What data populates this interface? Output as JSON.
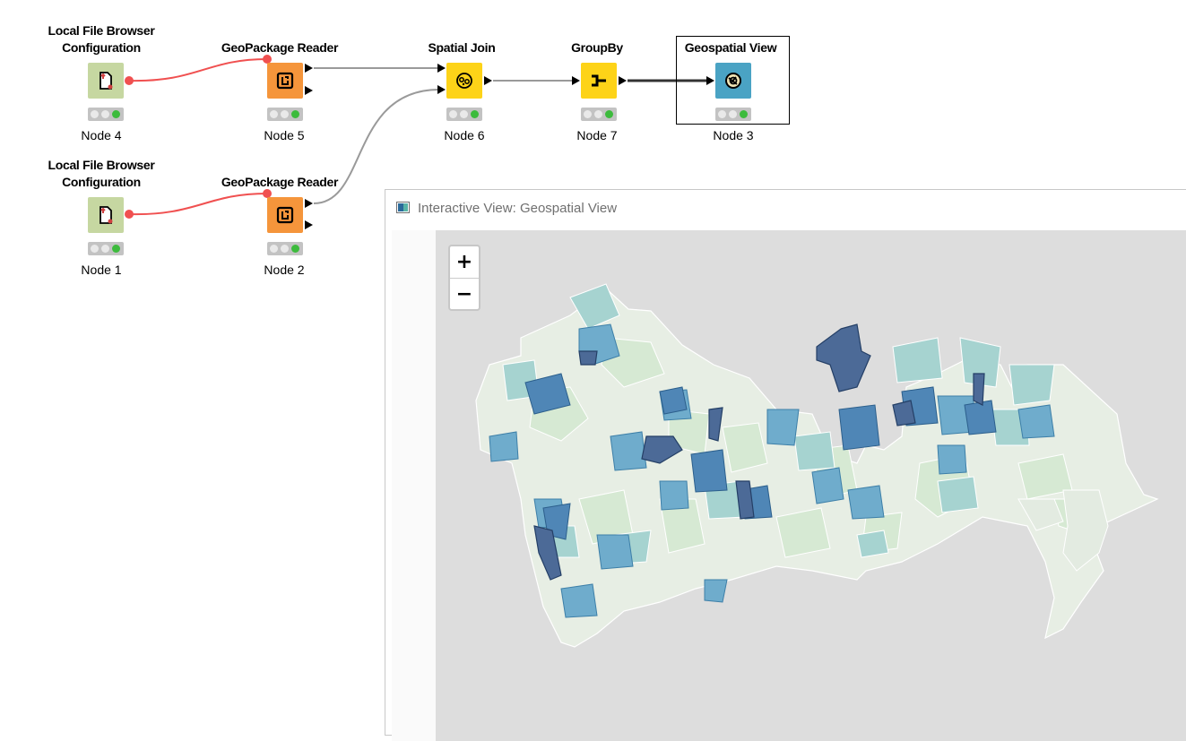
{
  "workflow": {
    "nodes": [
      {
        "id": "node4",
        "title_line1": "Local File Browser",
        "title_line2": "Configuration",
        "label": "Node 4",
        "type": "configuration"
      },
      {
        "id": "node5",
        "title_line1": "GeoPackage Reader",
        "title_line2": "",
        "label": "Node 5",
        "type": "reader"
      },
      {
        "id": "node6",
        "title_line1": "Spatial Join",
        "title_line2": "",
        "label": "Node 6",
        "type": "spatial-join"
      },
      {
        "id": "node7",
        "title_line1": "GroupBy",
        "title_line2": "",
        "label": "Node 7",
        "type": "groupby"
      },
      {
        "id": "node3",
        "title_line1": "Geospatial View",
        "title_line2": "",
        "label": "Node 3",
        "type": "view"
      },
      {
        "id": "node1",
        "title_line1": "Local File Browser",
        "title_line2": "Configuration",
        "label": "Node 1",
        "type": "configuration"
      },
      {
        "id": "node2",
        "title_line1": "GeoPackage Reader",
        "title_line2": "",
        "label": "Node 2",
        "type": "reader"
      }
    ],
    "icons": {
      "configuration": "file-browser-config-icon",
      "reader": "geopackage-reader-icon",
      "spatial-join": "spatial-join-icon",
      "groupby": "groupby-icon",
      "view": "geospatial-view-icon"
    },
    "colors": {
      "configuration": "#c6d7a1",
      "reader": "#f5953b",
      "spatial-join": "#fdd318",
      "groupby": "#fdd318",
      "view": "#4aa3c4",
      "flow_variable_connection": "#f05050",
      "data_connection": "#9a9a9a",
      "active_connection": "#333333"
    }
  },
  "view_window": {
    "title": "Interactive View: Geospatial View",
    "zoom_in_label": "+",
    "zoom_out_label": "−",
    "map_colors": {
      "background": "#dddddd",
      "low": "#eef0ea",
      "light": "#dcead5",
      "mid_light": "#a9d5d2",
      "mid": "#74b2c8",
      "high": "#4f8cba",
      "highest": "#4a6c99"
    }
  }
}
